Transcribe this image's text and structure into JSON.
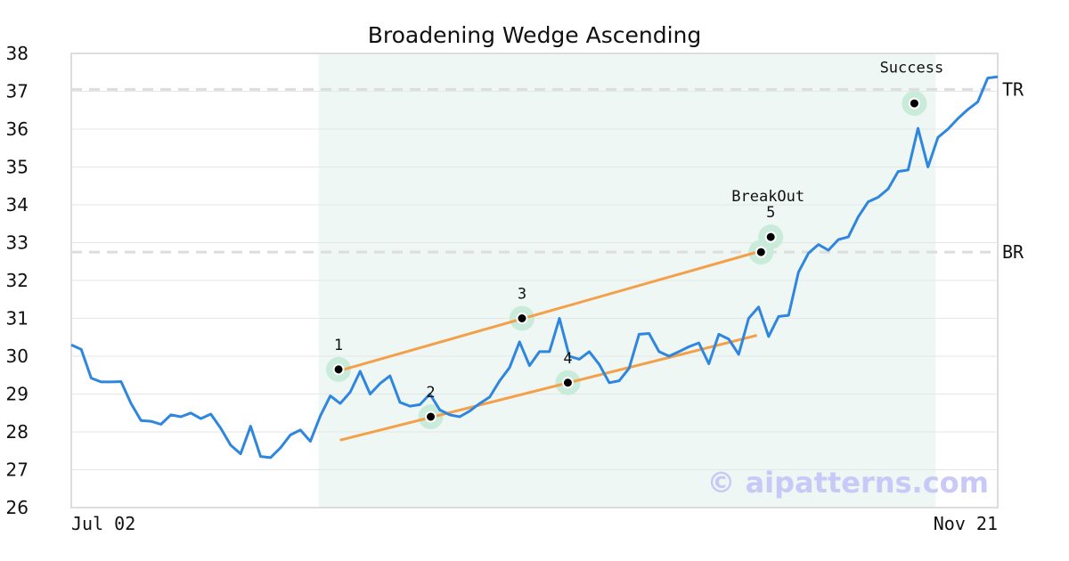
{
  "title": "Broadening Wedge Ascending",
  "watermark": "© aipatterns.com",
  "colors": {
    "price_line": "#2e86de",
    "trend_line": "#f4a04a",
    "highlight": "#c8ecd9",
    "pattern_zone": "#eef7f3",
    "level_line": "#dddddd",
    "grid": "#e6e6e6",
    "frame": "#dddddd",
    "watermark": "#c9c9f7"
  },
  "chart_data": {
    "type": "line",
    "title": "Broadening Wedge Ascending",
    "xlabel": "",
    "ylabel": "",
    "ylim": [
      26,
      38
    ],
    "xlim": [
      0,
      100
    ],
    "grid": true,
    "x_tick_labels": [
      {
        "x": 0,
        "label": "Jul 02"
      },
      {
        "x": 100,
        "label": "Nov 21"
      }
    ],
    "y_ticks": [
      26,
      27,
      28,
      29,
      30,
      31,
      32,
      33,
      34,
      35,
      36,
      37,
      38
    ],
    "pattern_zone": {
      "x_start": 26.7,
      "x_end": 93.3
    },
    "series": [
      {
        "values": [
          30.3,
          30.18,
          29.42,
          29.32,
          29.32,
          29.33,
          28.75,
          28.3,
          28.28,
          28.2,
          28.45,
          28.4,
          28.5,
          28.35,
          28.47,
          28.1,
          27.65,
          27.42,
          28.15,
          27.35,
          27.32,
          27.58,
          27.92,
          28.05,
          27.75,
          28.42,
          28.95,
          28.75,
          29.05,
          29.6,
          29.0,
          29.28,
          29.48,
          28.78,
          28.68,
          28.72,
          29.0,
          28.58,
          28.45,
          28.4,
          28.55,
          28.75,
          28.92,
          29.35,
          29.7,
          30.38,
          29.75,
          30.12,
          30.12,
          31.0,
          30.0,
          29.92,
          30.12,
          29.78,
          29.3,
          29.35,
          29.68,
          30.58,
          30.6,
          30.12,
          30.0,
          30.12,
          30.25,
          30.35,
          29.8,
          30.58,
          30.45,
          30.05,
          31.0,
          31.3,
          30.52,
          31.05,
          31.08,
          32.22,
          32.72,
          32.95,
          32.8,
          33.08,
          33.15,
          33.68,
          34.08,
          34.2,
          34.42,
          34.88,
          34.92,
          36.02,
          35.0,
          35.78,
          36.0,
          36.28,
          36.52,
          36.72,
          37.35,
          37.38
        ]
      }
    ],
    "trendlines": [
      {
        "x1": 29.0,
        "y1": 29.62,
        "x2": 74.0,
        "y2": 32.75
      },
      {
        "x1": 29.0,
        "y1": 27.78,
        "x2": 74.0,
        "y2": 30.55
      }
    ],
    "levels": [
      {
        "label": "TR",
        "y": 37.05
      },
      {
        "label": "BR",
        "y": 32.75
      }
    ],
    "points": [
      {
        "label": "1",
        "x": 28.85,
        "y": 29.65
      },
      {
        "label": "2",
        "x": 38.8,
        "y": 28.4
      },
      {
        "label": "3",
        "x": 48.65,
        "y": 31.0
      },
      {
        "label": "4",
        "x": 53.6,
        "y": 29.3
      },
      {
        "label": "5",
        "x": 75.5,
        "y": 33.15
      },
      {
        "label": "",
        "x": 74.45,
        "y": 32.75
      },
      {
        "label": "",
        "x": 91.0,
        "y": 36.68
      }
    ],
    "annotations": [
      {
        "text": "BreakOut",
        "x": 75.5,
        "y": 34.0
      },
      {
        "text": "Success",
        "x": 91.0,
        "y": 37.4
      }
    ]
  }
}
